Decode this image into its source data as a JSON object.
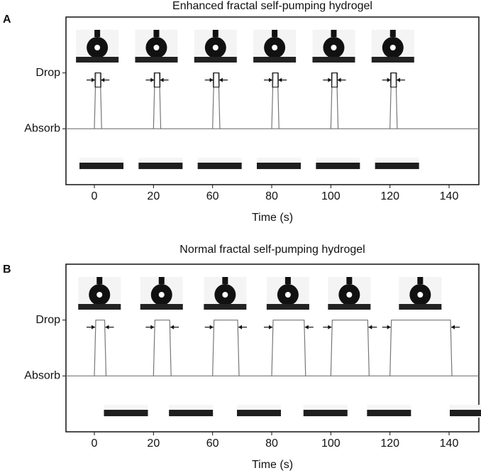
{
  "chart_data": [
    {
      "panel": "A",
      "type": "pulse",
      "title": "Enhanced fractal self-pumping hydrogel",
      "x_label": "Time (s)",
      "categories": [
        "0",
        "20",
        "60",
        "80",
        "100",
        "120",
        "140"
      ],
      "durations": [
        1.5,
        1.5,
        1.5,
        1.5,
        1.5,
        1.5,
        null
      ],
      "ylim": [
        -1,
        2
      ],
      "yticks": [
        {
          "value": 1,
          "label": "Drop"
        },
        {
          "value": 0,
          "label": "Absorb"
        }
      ],
      "color": "#777777"
    },
    {
      "panel": "B",
      "type": "pulse",
      "title": "Normal fractal self-pumping hydrogel",
      "x_label": "Time (s)",
      "categories": [
        "0",
        "20",
        "60",
        "80",
        "100",
        "120",
        "140"
      ],
      "durations": [
        3,
        5,
        8,
        10.5,
        12,
        20,
        null
      ],
      "ylim": [
        -1,
        2
      ],
      "yticks": [
        {
          "value": 1,
          "label": "Drop"
        },
        {
          "value": 0,
          "label": "Absorb"
        }
      ],
      "color": "#777777"
    }
  ]
}
